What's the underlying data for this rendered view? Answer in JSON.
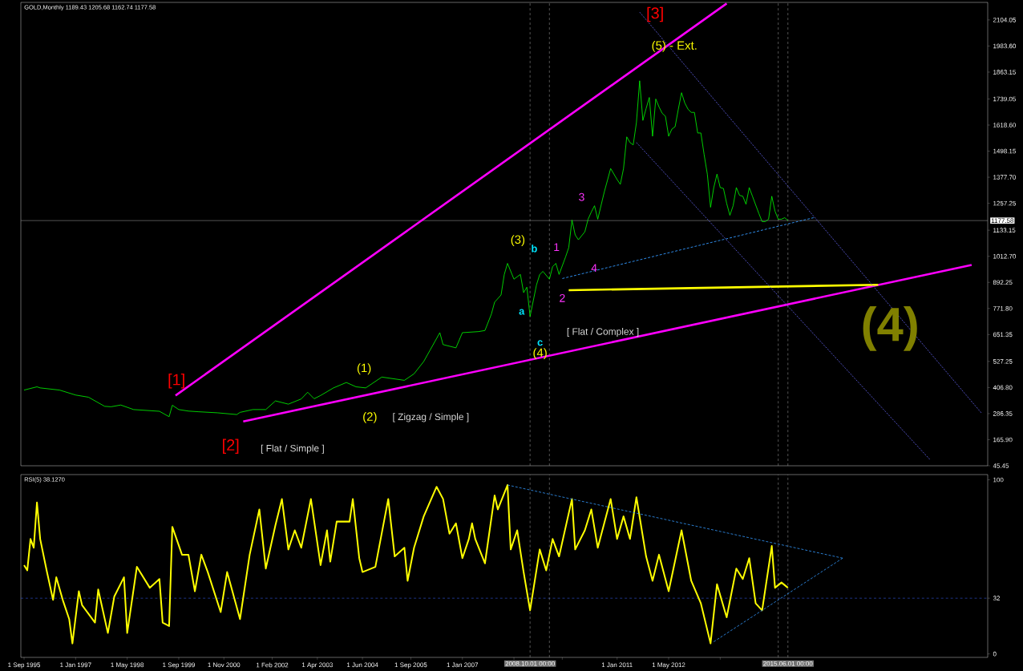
{
  "chart_data": [
    {
      "type": "line",
      "title": "GOLD,Monthly  1189.43 1205.68 1162.74 1177.58",
      "tick_labels": "y",
      "xlim": [
        "1995-08",
        "2020-08"
      ],
      "ylim": [
        45.45,
        2185
      ],
      "yticks": [
        {
          "value": 45.45,
          "label": "45.45"
        },
        {
          "value": 165.9,
          "label": "165.90"
        },
        {
          "value": 286.35,
          "label": "286.35"
        },
        {
          "value": 406.8,
          "label": "406.80"
        },
        {
          "value": 527.25,
          "label": "527.25"
        },
        {
          "value": 651.35,
          "label": "651.35"
        },
        {
          "value": 771.8,
          "label": "771.80"
        },
        {
          "value": 892.25,
          "label": "892.25"
        },
        {
          "value": 1012.7,
          "label": "1012.70"
        },
        {
          "value": 1133.15,
          "label": "1133.15"
        },
        {
          "value": 1257.25,
          "label": "1257.25"
        },
        {
          "value": 1377.7,
          "label": "1377.70"
        },
        {
          "value": 1498.15,
          "label": "1498.15"
        },
        {
          "value": 1618.6,
          "label": "1618.60"
        },
        {
          "value": 1739.05,
          "label": "1739.05"
        },
        {
          "value": 1863.15,
          "label": "1863.15"
        },
        {
          "value": 1983.6,
          "label": "1983.60"
        },
        {
          "value": 2104.05,
          "label": "2104.05"
        }
      ],
      "series": [
        {
          "color": "#00ff00",
          "line_style": "solid",
          "x": [
            "1995-09",
            "1996-01",
            "1996-02",
            "1996-08",
            "1997-01",
            "1997-05",
            "1997-10",
            "1997-12",
            "1998-03",
            "1998-07",
            "1999-03",
            "1999-06",
            "1999-07",
            "1999-09",
            "1999-12",
            "2000-03",
            "2000-09",
            "2001-03",
            "2001-04",
            "2001-08",
            "2001-12",
            "2002-03",
            "2002-07",
            "2002-11",
            "2003-01",
            "2003-03",
            "2003-05",
            "2003-09",
            "2004-01",
            "2004-04",
            "2004-07",
            "2004-12",
            "2005-07",
            "2005-10",
            "2006-01",
            "2006-03",
            "2006-06",
            "2006-07",
            "2006-11",
            "2007-01",
            "2007-06",
            "2007-08",
            "2007-10",
            "2007-11",
            "2008-01",
            "2008-02",
            "2008-03",
            "2008-05",
            "2008-07",
            "2008-08",
            "2008-09",
            "2008-10",
            "2008-11",
            "2008-12",
            "2009-01",
            "2009-02",
            "2009-04",
            "2009-05",
            "2009-06",
            "2009-07",
            "2009-09",
            "2009-10",
            "2009-11",
            "2009-12",
            "2010-01",
            "2010-03",
            "2010-04",
            "2010-05",
            "2010-06",
            "2010-07",
            "2010-09",
            "2010-10",
            "2010-11",
            "2011-01",
            "2011-02",
            "2011-03",
            "2011-04",
            "2011-05",
            "2011-06",
            "2011-07",
            "2011-08",
            "2011-09",
            "2011-10",
            "2011-11",
            "2011-12",
            "2012-01",
            "2012-02",
            "2012-03",
            "2012-04",
            "2012-05",
            "2012-06",
            "2012-07",
            "2012-08",
            "2012-09",
            "2012-10",
            "2012-11",
            "2012-12",
            "2013-01",
            "2013-02",
            "2013-03",
            "2013-04",
            "2013-05",
            "2013-06",
            "2013-07",
            "2013-08",
            "2013-09",
            "2013-10",
            "2013-11",
            "2013-12",
            "2014-01",
            "2014-02",
            "2014-03",
            "2014-04",
            "2014-05",
            "2014-06",
            "2014-07",
            "2014-09",
            "2014-10",
            "2014-11",
            "2014-12",
            "2015-01",
            "2015-02",
            "2015-03",
            "2015-04",
            "2015-05",
            "2015-06"
          ],
          "values": [
            395,
            410,
            405,
            395,
            372,
            362,
            320,
            318,
            326,
            305,
            297,
            272,
            325,
            305,
            298,
            295,
            290,
            282,
            292,
            305,
            305,
            345,
            330,
            354,
            385,
            355,
            370,
            405,
            430,
            410,
            405,
            455,
            440,
            470,
            527,
            580,
            660,
            605,
            590,
            660,
            665,
            670,
            746,
            801,
            834,
            929,
            980,
            907,
            929,
            845,
            870,
            735,
            808,
            881,
            929,
            943,
            907,
            965,
            980,
            929,
            1009,
            1053,
            1180,
            1111,
            1089,
            1126,
            1184,
            1217,
            1246,
            1184,
            1308,
            1363,
            1418,
            1367,
            1345,
            1418,
            1564,
            1538,
            1527,
            1630,
            1823,
            1640,
            1695,
            1746,
            1567,
            1739,
            1703,
            1673,
            1659,
            1567,
            1600,
            1611,
            1692,
            1768,
            1721,
            1692,
            1677,
            1677,
            1582,
            1582,
            1483,
            1392,
            1239,
            1330,
            1392,
            1330,
            1326,
            1257,
            1202,
            1246,
            1330,
            1294,
            1290,
            1253,
            1330,
            1290,
            1210,
            1173,
            1173,
            1184,
            1290,
            1221,
            1184,
            1184,
            1191,
            1178
          ]
        },
        {
          "color": "#ff00ff",
          "line_style": "solid",
          "x": [
            "1999-08",
            "2013-11"
          ],
          "values": [
            370,
            2180
          ]
        },
        {
          "color": "#ff00ff",
          "line_style": "solid",
          "x": [
            "2001-05",
            "2020-03"
          ],
          "values": [
            250,
            973
          ]
        },
        {
          "color": "#ffff00",
          "line_style": "solid",
          "x": [
            "2017-10",
            "2009-10"
          ],
          "values": [
            881,
            856
          ]
        },
        {
          "color": "#5a5ad8",
          "line_style": "dotted",
          "x": [
            "2011-08",
            "2020-06"
          ],
          "values": [
            2140,
            290
          ]
        },
        {
          "color": "#5a5ad8",
          "line_style": "dotted",
          "x": [
            "2011-07",
            "2019-02"
          ],
          "values": [
            1538,
            75
          ]
        },
        {
          "color": "#3399ff",
          "line_style": "dashed",
          "x": [
            "2009-08",
            "2016-02"
          ],
          "values": [
            910,
            1191
          ]
        }
      ],
      "ref_lines": [
        {
          "axis": "y",
          "value": 1177.58,
          "label": "1177.58",
          "color": "#8c8c8c",
          "line_style": "solid"
        },
        {
          "axis": "x",
          "value": "2008-10",
          "color": "#8c8c8c",
          "line_style": "dashed"
        },
        {
          "axis": "x",
          "value": "2009-04",
          "color": "#8c8c8c",
          "line_style": "dashed"
        },
        {
          "axis": "x",
          "value": "2015-03",
          "color": "#8c8c8c",
          "line_style": "dashed"
        },
        {
          "axis": "x",
          "value": "2015-06",
          "color": "#8c8c8c",
          "line_style": "dashed"
        }
      ],
      "annotations": [
        "[1]",
        "[2]",
        "[3]",
        "(1)",
        "(2)",
        "(3)",
        "(4)",
        "(5) - Ext.",
        "[ Flat / Simple ]",
        "[ Zigzag / Simple ]",
        "[ Flat / Complex ]",
        "a",
        "b",
        "c",
        "1",
        "2",
        "3",
        "4",
        "(4)"
      ]
    },
    {
      "type": "line",
      "title": "RSI(5) 38.1270",
      "xlim": [
        "1995-08",
        "2020-08"
      ],
      "ylim": [
        -2,
        103
      ],
      "yticks": [
        0,
        32,
        100
      ],
      "xticks": [
        {
          "value": "1995-09",
          "label": "1 Sep 1995"
        },
        {
          "value": "1997-01",
          "label": "1 Jan 1997"
        },
        {
          "value": "1998-05",
          "label": "1 May 1998"
        },
        {
          "value": "1999-09",
          "label": "1 Sep 1999"
        },
        {
          "value": "2000-11",
          "label": "1 Nov 2000"
        },
        {
          "value": "2002-02",
          "label": "1 Feb 2002"
        },
        {
          "value": "2003-04",
          "label": "1 Apr 2003"
        },
        {
          "value": "2004-06",
          "label": "1 Jun 2004"
        },
        {
          "value": "2005-09",
          "label": "1 Sep 2005"
        },
        {
          "value": "2007-01",
          "label": "1 Jan 2007"
        },
        {
          "value": "2008-05",
          "label": null
        },
        {
          "value": "2009-08",
          "label": null
        },
        {
          "value": "2011-01",
          "label": "1 Jan 2011"
        },
        {
          "value": "2012-05",
          "label": "1 May 2012"
        },
        {
          "value": "2013-09",
          "label": null
        }
      ],
      "series": [
        {
          "color": "#ffff00",
          "line_style": "solid",
          "x": [
            "1995-09",
            "1995-10",
            "1995-11",
            "1995-12",
            "1996-01",
            "1996-02",
            "1996-04",
            "1996-06",
            "1996-07",
            "1996-09",
            "1996-11",
            "1996-12",
            "1997-02",
            "1997-03",
            "1997-07",
            "1997-08",
            "1997-11",
            "1998-01",
            "1998-04",
            "1998-05",
            "1998-08",
            "1998-12",
            "1999-03",
            "1999-04",
            "1999-06",
            "1999-07",
            "1999-10",
            "1999-12",
            "2000-02",
            "2000-04",
            "2000-06",
            "2000-10",
            "2000-12",
            "2001-04",
            "2001-07",
            "2001-10",
            "2001-12",
            "2002-03",
            "2002-05",
            "2002-07",
            "2002-09",
            "2002-11",
            "2003-02",
            "2003-05",
            "2003-07",
            "2003-08",
            "2003-10",
            "2004-02",
            "2004-03",
            "2004-05",
            "2004-06",
            "2004-10",
            "2005-02",
            "2005-04",
            "2005-07",
            "2005-08",
            "2005-10",
            "2006-01",
            "2006-05",
            "2006-07",
            "2006-09",
            "2006-11",
            "2007-01",
            "2007-03",
            "2007-04",
            "2007-05",
            "2007-08",
            "2007-11",
            "2007-12",
            "2008-03",
            "2008-04",
            "2008-06",
            "2008-08",
            "2008-10",
            "2009-01",
            "2009-03",
            "2009-05",
            "2009-07",
            "2009-11",
            "2009-12",
            "2010-03",
            "2010-05",
            "2010-07",
            "2010-11",
            "2011-01",
            "2011-03",
            "2011-05",
            "2011-07",
            "2011-10",
            "2011-12",
            "2012-02",
            "2012-05",
            "2012-09",
            "2012-12",
            "2013-03",
            "2013-06",
            "2013-08",
            "2013-11",
            "2014-02",
            "2014-04",
            "2014-06",
            "2014-08",
            "2014-10",
            "2015-01",
            "2015-02",
            "2015-04",
            "2015-06"
          ],
          "values": [
            51,
            48,
            66,
            61,
            87,
            66,
            48,
            31,
            44,
            31,
            20,
            6,
            36,
            28,
            18,
            37,
            12,
            33,
            44,
            12,
            50,
            38,
            43,
            18,
            16,
            73,
            57,
            57,
            36,
            57,
            47,
            24,
            47,
            20,
            57,
            83,
            49,
            74,
            89,
            60,
            71,
            61,
            89,
            51,
            71,
            53,
            76,
            76,
            89,
            55,
            47,
            50,
            89,
            56,
            61,
            42,
            61,
            79,
            96,
            89,
            69,
            75,
            55,
            66,
            75,
            66,
            52,
            91,
            83,
            97,
            60,
            71,
            47,
            25,
            60,
            48,
            66,
            56,
            89,
            60,
            71,
            83,
            61,
            89,
            66,
            79,
            66,
            90,
            56,
            42,
            57,
            36,
            71,
            42,
            29,
            6,
            40,
            21,
            49,
            43,
            55,
            29,
            25,
            62,
            38,
            41,
            38
          ]
        },
        {
          "color": "#3399ff",
          "line_style": "dashed",
          "x": [
            "2008-03",
            "2016-11"
          ],
          "values": [
            97,
            55
          ]
        },
        {
          "color": "#3399ff",
          "line_style": "dashed",
          "x": [
            "2013-07",
            "2016-11"
          ],
          "values": [
            7,
            55
          ]
        }
      ],
      "ref_lines": [
        {
          "axis": "y",
          "value": 32,
          "color": "#3355dd",
          "line_style": "dashed"
        },
        {
          "axis": "x",
          "value": "2008-10",
          "label": "2008.10.01 00:00",
          "color": "#8c8c8c",
          "line_style": "dashed"
        },
        {
          "axis": "x",
          "value": "2009-04",
          "color": "#8c8c8c",
          "line_style": "dashed"
        },
        {
          "axis": "x",
          "value": "2015-03",
          "color": "#8c8c8c",
          "line_style": "dashed"
        },
        {
          "axis": "x",
          "value": "2015-06",
          "label": "2015.06.01 00:00",
          "color": "#8c8c8c",
          "line_style": "dashed"
        }
      ]
    }
  ]
}
